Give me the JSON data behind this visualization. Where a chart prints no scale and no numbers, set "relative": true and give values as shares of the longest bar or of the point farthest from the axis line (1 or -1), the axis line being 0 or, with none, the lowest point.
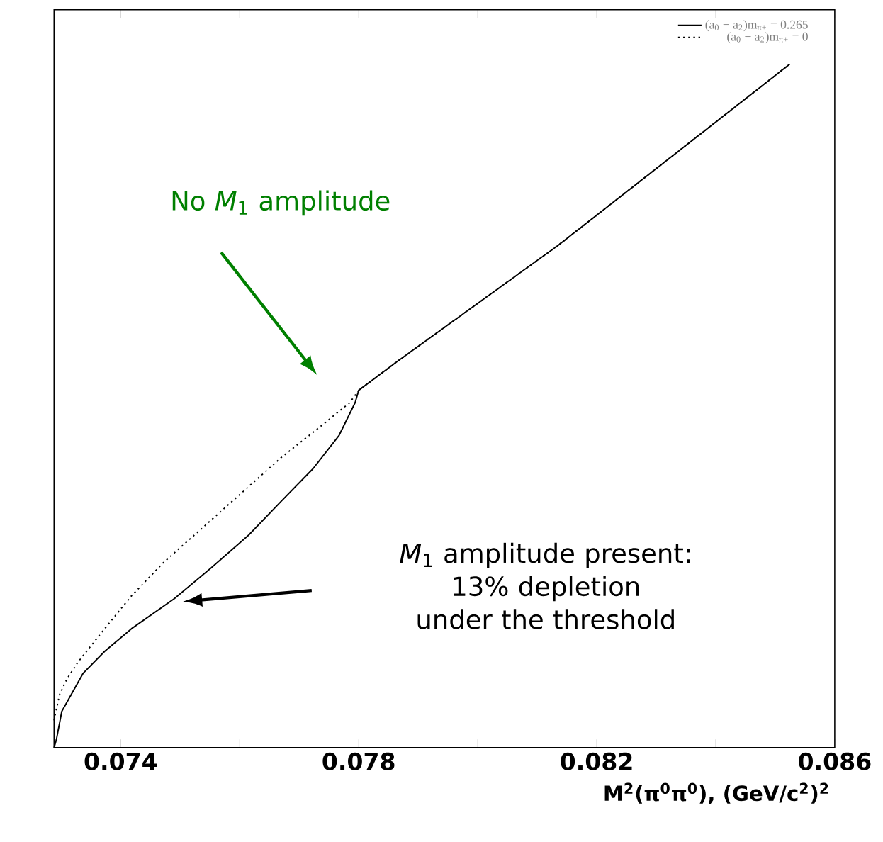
{
  "chart_data": {
    "type": "line",
    "relative": true,
    "xlabel": "M$^{2}$(π$^{0}$π$^{0}$), (GeV/c$^{2}$)$^{2}$",
    "xlim": [
      0.07288,
      0.086
    ],
    "xticks": [
      0.074,
      {
        "value": 0.076,
        "label": null
      },
      0.078,
      {
        "value": 0.08,
        "label": null
      },
      0.082,
      {
        "value": 0.084,
        "label": null
      },
      0.086
    ],
    "legend": "top right",
    "series": [
      {
        "name": "(a$_{0}$ − a$_{2}$)m$_{π+}$ = 0.265",
        "color": "#000000",
        "line_style": "solid",
        "x": [
          0.07288,
          0.07292,
          0.07301,
          0.07337,
          0.07373,
          0.07418,
          0.0749,
          0.07552,
          0.07615,
          0.07669,
          0.07723,
          0.07767,
          0.07794,
          0.078,
          0.07866,
          0.08135,
          0.08524
        ],
        "values": [
          0,
          0.012,
          0.053,
          0.109,
          0.141,
          0.174,
          0.218,
          0.263,
          0.311,
          0.36,
          0.408,
          0.457,
          0.505,
          0.523,
          0.566,
          0.735,
          1.0
        ]
      },
      {
        "name": "(a$_{0}$ − a$_{2}$)m$_{π+}$ = 0",
        "color": "#000000",
        "line_style": "dotted",
        "x": [
          0.07288,
          0.07297,
          0.0731,
          0.07328,
          0.07373,
          0.07418,
          0.07472,
          0.07534,
          0.07597,
          0.07669,
          0.0774,
          0.07785,
          0.078,
          0.07866,
          0.08135,
          0.08524
        ],
        "values": [
          0.04,
          0.077,
          0.101,
          0.125,
          0.174,
          0.222,
          0.271,
          0.319,
          0.368,
          0.424,
          0.473,
          0.505,
          0.523,
          0.566,
          0.735,
          1.0
        ]
      }
    ],
    "annotations": [
      "No *M*$_{1}$ amplitude",
      "*M*$_{1}$ amplitude present: 13% depletion under the threshold"
    ]
  }
}
